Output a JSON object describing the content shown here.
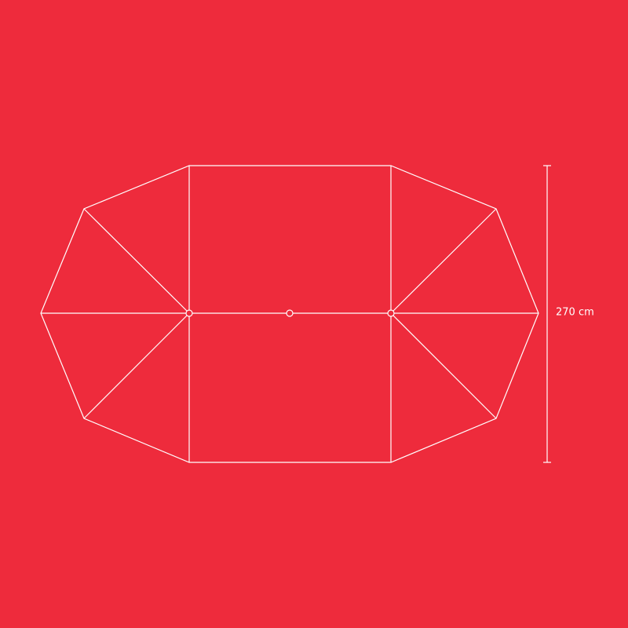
{
  "dimension": {
    "label": "270 cm"
  }
}
